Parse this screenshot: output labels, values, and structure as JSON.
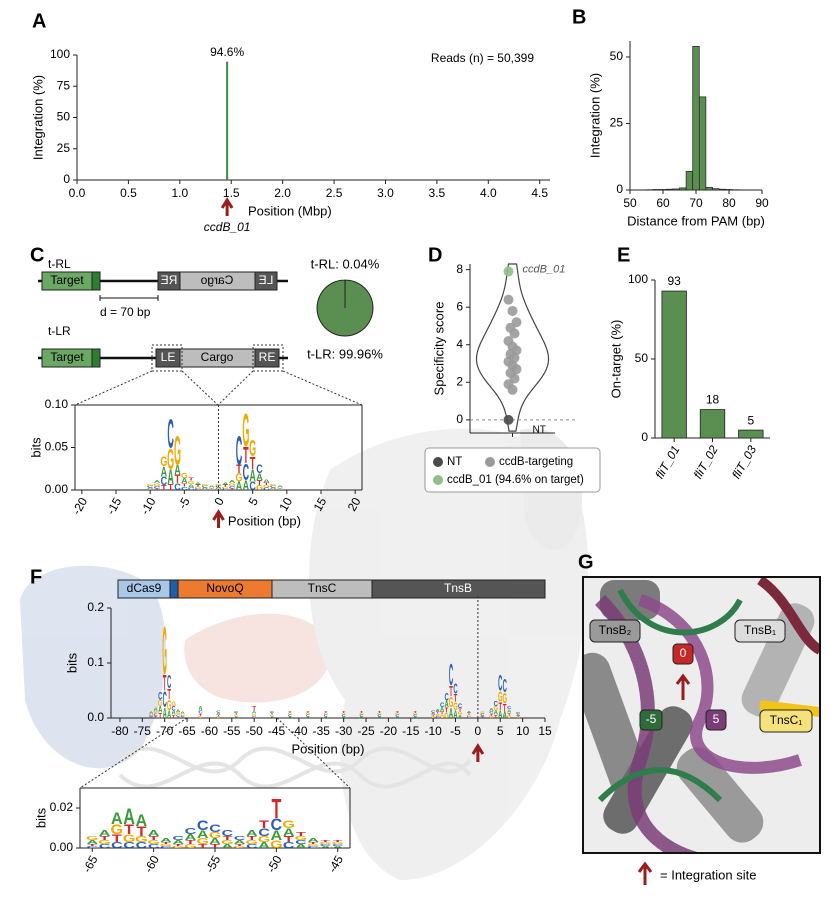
{
  "panel_letters": [
    "A",
    "B",
    "C",
    "D",
    "E",
    "F",
    "G"
  ],
  "construct": {
    "t_rl": "t-RL",
    "t_lr": "t-LR",
    "target": "Target",
    "le": "LE",
    "re": "RE",
    "cargo": "Cargo",
    "distance": "d = 70 bp"
  },
  "domains": [
    "dCas9",
    "NovoQ",
    "TnsC",
    "TnsB"
  ],
  "structure": {
    "labels": [
      "TnsB₂",
      "TnsB₁",
      "0",
      "-5",
      "5",
      "TnsC₁"
    ],
    "legend": "= Integration site"
  },
  "chart_data": [
    {
      "type": "spike",
      "x": [
        1.46
      ],
      "values": [
        94.6
      ],
      "value_labels": [
        "94.6%"
      ],
      "color": "#3d8a44",
      "xlim": [
        0,
        4.6
      ],
      "xticks": [
        {
          "value": 0,
          "label": "0.0"
        },
        {
          "value": 0.5,
          "label": "0.5"
        },
        {
          "value": 1,
          "label": "1.0"
        },
        {
          "value": 1.5,
          "label": "1.5"
        },
        {
          "value": 2,
          "label": "2.0"
        },
        {
          "value": 2.5,
          "label": "2.5"
        },
        {
          "value": 3,
          "label": "3.0"
        },
        {
          "value": 3.5,
          "label": "3.5"
        },
        {
          "value": 4,
          "label": "4.0"
        },
        {
          "value": 4.5,
          "label": "4.5"
        }
      ],
      "ylim": [
        0,
        100
      ],
      "yticks": [
        0,
        25,
        50,
        75,
        100
      ],
      "xlabel": "Position (Mbp)",
      "ylabel": "Integration (%)",
      "annotation": "Reads (n) = 50,399",
      "marker_label": "ccdB_01"
    },
    {
      "type": "histogram",
      "bins": [
        55,
        57,
        59,
        61,
        63,
        65,
        67,
        69,
        71,
        73,
        75,
        77,
        79,
        81,
        83
      ],
      "values": [
        0.1,
        0.2,
        0.2,
        0.3,
        0.4,
        0.8,
        7,
        54,
        35,
        1,
        0.5,
        0.3,
        0.2,
        0.1
      ],
      "color": "#5b8f52",
      "xlim": [
        50,
        90
      ],
      "xticks": [
        50,
        60,
        70,
        80,
        90
      ],
      "ylim": [
        0,
        56
      ],
      "yticks": [
        0,
        25,
        50
      ],
      "xlabel": "Distance from PAM (bp)",
      "ylabel": "Integration (%)"
    },
    {
      "type": "pie",
      "values": [
        0.04,
        99.96
      ],
      "value_labels": [
        "t-RL: 0.04%",
        "t-LR: 99.96%"
      ],
      "color": "#5b8f52"
    },
    {
      "type": "logo",
      "x": [
        -10,
        -9,
        -8,
        -7,
        -6,
        -5,
        -4,
        -3,
        -2,
        -1,
        0,
        1,
        2,
        3,
        4,
        5,
        6,
        7,
        8,
        9
      ],
      "series": [
        {
          "name": "A",
          "color": "#3a9b3a",
          "values": [
            0.002,
            0.004,
            0.012,
            0.018,
            0.012,
            0.006,
            0.004,
            0.003,
            0.002,
            0.002,
            0.002,
            0.003,
            0.004,
            0.01,
            0.012,
            0.015,
            0.008,
            0.004,
            0.002,
            0.002
          ]
        },
        {
          "name": "C",
          "color": "#2b5fb8",
          "values": [
            0.002,
            0.003,
            0.01,
            0.035,
            0.008,
            0.004,
            0.003,
            0.002,
            0.002,
            0.001,
            0.002,
            0.002,
            0.003,
            0.035,
            0.02,
            0.01,
            0.01,
            0.003,
            0.002,
            0.001
          ]
        },
        {
          "name": "G",
          "color": "#f2a900",
          "values": [
            0.002,
            0.003,
            0.012,
            0.025,
            0.035,
            0.006,
            0.004,
            0.002,
            0.002,
            0.001,
            0.002,
            0.002,
            0.003,
            0.01,
            0.04,
            0.02,
            0.006,
            0.003,
            0.002,
            0.001
          ]
        },
        {
          "name": "T",
          "color": "#d62728",
          "values": [
            0.001,
            0.002,
            0.006,
            0.007,
            0.01,
            0.004,
            0.004,
            0.002,
            0.001,
            0.001,
            0.001,
            0.002,
            0.002,
            0.01,
            0.02,
            0.015,
            0.006,
            0.003,
            0.001,
            0.001
          ]
        }
      ],
      "xlim": [
        -21,
        21
      ],
      "xticks": [
        -20,
        -15,
        -10,
        -5,
        0,
        5,
        10,
        15,
        20
      ],
      "ylim": [
        0,
        0.1
      ],
      "yticks": [
        {
          "value": 0,
          "label": "0.00"
        },
        {
          "value": 0.05,
          "label": "0.05"
        },
        {
          "value": 0.1,
          "label": "0.10"
        }
      ],
      "xlabel": "Position (bp)",
      "ylabel": "bits",
      "vline": 0
    },
    {
      "type": "violin",
      "series": [
        {
          "name": "NT",
          "color": "#4a4a4a",
          "values": [
            0
          ]
        },
        {
          "name": "ccdB-targeting",
          "color": "#9a9a9a",
          "values": [
            6.4,
            5.8,
            5.2,
            4.9,
            4.6,
            4.2,
            3.9,
            3.7,
            3.5,
            3.3,
            3.1,
            2.9,
            2.7,
            2.5,
            2.2,
            1.9,
            1.6
          ]
        },
        {
          "name": "ccdB_01 (94.6% on target)",
          "color": "#8fbf87",
          "values": [
            7.9
          ]
        }
      ],
      "ylim": [
        -0.7,
        8.3
      ],
      "yticks": [
        0,
        2,
        4,
        6,
        8
      ],
      "ylabel": "Specificity score",
      "reference_line": 0,
      "annotations": [
        "ccdB_01",
        "NT"
      ]
    },
    {
      "type": "bar",
      "categories": [
        "fliT_01",
        "fliT_02",
        "fliT_03"
      ],
      "values": [
        93,
        18,
        5
      ],
      "color": "#5b8f52",
      "ylim": [
        0,
        100
      ],
      "yticks": [
        0,
        50,
        100
      ],
      "ylabel": "On-target (%)"
    },
    {
      "type": "logo",
      "x": [
        -73,
        -72,
        -71,
        -70,
        -69,
        -68,
        -67,
        -66,
        -62,
        -58,
        -54,
        -50,
        -46,
        -42,
        -38,
        -34,
        -30,
        -26,
        -22,
        -18,
        -14,
        -10,
        -9,
        -8,
        -7,
        -6,
        -5,
        -4,
        -2,
        1,
        3,
        4,
        5,
        6,
        7,
        9
      ],
      "series": [
        {
          "name": "A",
          "color": "#3a9b3a",
          "values": [
            0.004,
            0.006,
            0.012,
            0.02,
            0.015,
            0.008,
            0.005,
            0.004,
            0.008,
            0.004,
            0.003,
            0.006,
            0.003,
            0.003,
            0.003,
            0.003,
            0.003,
            0.003,
            0.003,
            0.003,
            0.003,
            0.004,
            0.005,
            0.008,
            0.012,
            0.02,
            0.015,
            0.006,
            0.004,
            0.003,
            0.006,
            0.008,
            0.015,
            0.012,
            0.006,
            0.003
          ]
        },
        {
          "name": "C",
          "color": "#2b5fb8",
          "values": [
            0.003,
            0.005,
            0.015,
            0.03,
            0.025,
            0.008,
            0.004,
            0.003,
            0.006,
            0.004,
            0.004,
            0.004,
            0.004,
            0.003,
            0.003,
            0.003,
            0.003,
            0.003,
            0.003,
            0.003,
            0.003,
            0.004,
            0.004,
            0.008,
            0.015,
            0.04,
            0.02,
            0.008,
            0.003,
            0.003,
            0.005,
            0.01,
            0.03,
            0.025,
            0.006,
            0.003
          ]
        },
        {
          "name": "G",
          "color": "#f2a900",
          "values": [
            0.003,
            0.005,
            0.012,
            0.09,
            0.02,
            0.008,
            0.004,
            0.003,
            0.004,
            0.003,
            0.003,
            0.004,
            0.003,
            0.003,
            0.003,
            0.003,
            0.003,
            0.003,
            0.003,
            0.003,
            0.003,
            0.003,
            0.004,
            0.006,
            0.01,
            0.02,
            0.015,
            0.006,
            0.003,
            0.003,
            0.004,
            0.008,
            0.02,
            0.02,
            0.005,
            0.002
          ]
        },
        {
          "name": "T",
          "color": "#d62728",
          "values": [
            0.002,
            0.004,
            0.01,
            0.03,
            0.02,
            0.006,
            0.003,
            0.002,
            0.004,
            0.003,
            0.003,
            0.008,
            0.003,
            0.003,
            0.003,
            0.003,
            0.003,
            0.003,
            0.003,
            0.003,
            0.003,
            0.003,
            0.004,
            0.006,
            0.01,
            0.02,
            0.015,
            0.006,
            0.003,
            0.002,
            0.004,
            0.006,
            0.015,
            0.015,
            0.005,
            0.002
          ]
        }
      ],
      "xlim": [
        -82,
        15
      ],
      "xticks": [
        -80,
        -75,
        -70,
        -65,
        -60,
        -55,
        -50,
        -45,
        -40,
        -35,
        -30,
        -25,
        -20,
        -15,
        -10,
        -5,
        0,
        5,
        10,
        15
      ],
      "ylim": [
        0,
        0.2
      ],
      "yticks": [
        {
          "value": 0,
          "label": "0.0"
        },
        {
          "value": 0.1,
          "label": "0.1"
        },
        {
          "value": 0.2,
          "label": "0.2"
        }
      ],
      "xlabel": "Position (bp)",
      "ylabel": "bits",
      "vline": 0
    },
    {
      "type": "logo",
      "x": [
        -65,
        -64,
        -63,
        -62,
        -61,
        -60,
        -59,
        -58,
        -57,
        -56,
        -55,
        -54,
        -53,
        -52,
        -51,
        -50,
        -49,
        -48,
        -47,
        -46,
        -45
      ],
      "series": [
        {
          "name": "A",
          "color": "#3a9b3a",
          "values": [
            0.002,
            0.003,
            0.006,
            0.008,
            0.006,
            0.003,
            0.002,
            0.002,
            0.003,
            0.004,
            0.003,
            0.002,
            0.002,
            0.003,
            0.003,
            0.005,
            0.004,
            0.002,
            0.002,
            0.001,
            0.001
          ]
        },
        {
          "name": "C",
          "color": "#2b5fb8",
          "values": [
            0.001,
            0.002,
            0.003,
            0.003,
            0.003,
            0.002,
            0.001,
            0.002,
            0.003,
            0.005,
            0.004,
            0.003,
            0.002,
            0.002,
            0.004,
            0.006,
            0.003,
            0.002,
            0.001,
            0.001,
            0.001
          ]
        },
        {
          "name": "G",
          "color": "#f2a900",
          "values": [
            0.002,
            0.002,
            0.005,
            0.004,
            0.003,
            0.002,
            0.001,
            0.001,
            0.002,
            0.003,
            0.003,
            0.002,
            0.001,
            0.002,
            0.003,
            0.004,
            0.004,
            0.002,
            0.001,
            0.001,
            0.001
          ]
        },
        {
          "name": "T",
          "color": "#d62728",
          "values": [
            0.001,
            0.002,
            0.004,
            0.005,
            0.005,
            0.002,
            0.001,
            0.001,
            0.002,
            0.002,
            0.002,
            0.002,
            0.001,
            0.002,
            0.004,
            0.01,
            0.003,
            0.002,
            0.001,
            0.001,
            0.001
          ]
        }
      ],
      "xlim": [
        -66,
        -44
      ],
      "xticks": [
        -65,
        -60,
        -55,
        -50,
        -45
      ],
      "ylim": [
        0,
        0.03
      ],
      "yticks": [
        {
          "value": 0,
          "label": "0.00"
        },
        {
          "value": 0.02,
          "label": "0.02"
        }
      ],
      "ylabel": "bits"
    }
  ]
}
